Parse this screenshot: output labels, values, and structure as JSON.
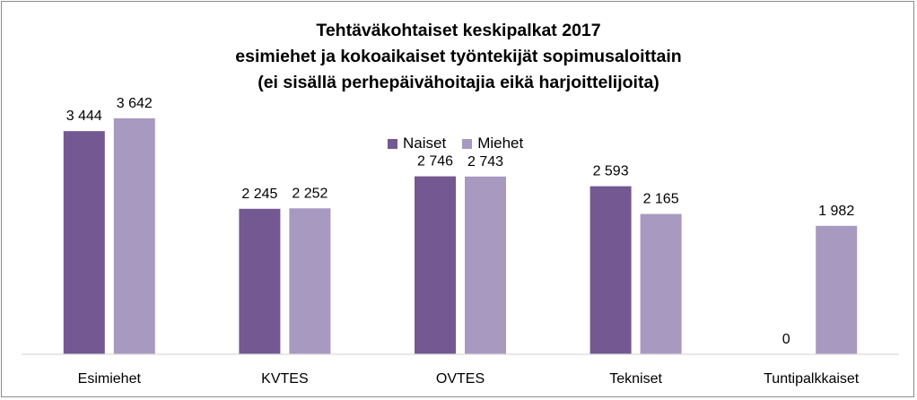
{
  "chart_data": {
    "type": "bar",
    "title_lines": [
      "Tehtäväkohtaiset keskipalkat 2017",
      "esimiehet ja kokoaikaiset työntekijät sopimusaloittain",
      "(ei sisällä perhepäivähoitajia eikä harjoittelijoita)"
    ],
    "categories": [
      "Esimiehet",
      "KVTES",
      "OVTES",
      "Tekniset",
      "Tuntipalkkaiset"
    ],
    "series": [
      {
        "name": "Naiset",
        "color": "#735891",
        "values": [
          3444,
          2245,
          2746,
          2593,
          0
        ],
        "labels": [
          "3 444",
          "2 245",
          "2 746",
          "2 593",
          "0"
        ]
      },
      {
        "name": "Miehet",
        "color": "#A899C1",
        "values": [
          3642,
          2252,
          2743,
          2165,
          1982
        ],
        "labels": [
          "3 642",
          "2 252",
          "2 743",
          "2 165",
          "1 982"
        ]
      }
    ],
    "ylim": [
      0,
      4000
    ],
    "grid": false,
    "legend_position": "top-center",
    "xlabel": "",
    "ylabel": ""
  }
}
